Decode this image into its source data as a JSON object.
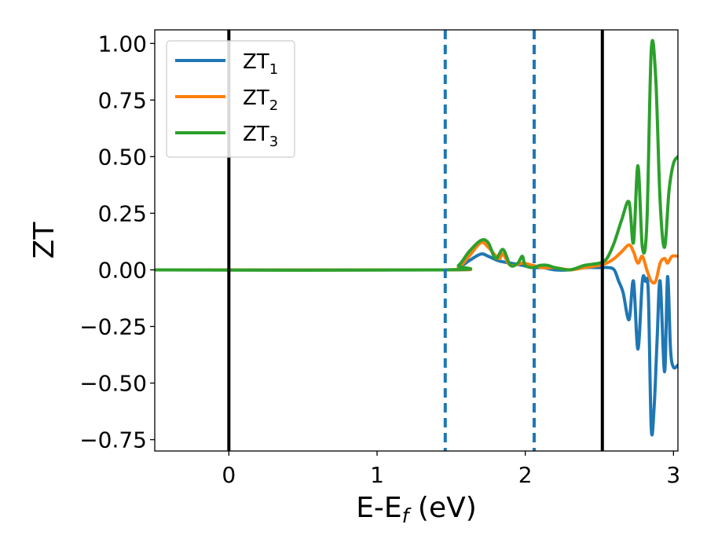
{
  "chart_data": {
    "type": "line",
    "xlabel": "E-E_f (eV)",
    "ylabel": "ZT",
    "xlim": [
      -0.5,
      3.03
    ],
    "ylim": [
      -0.8,
      1.06
    ],
    "xticks": [
      0,
      1,
      2,
      3
    ],
    "xtick_labels": [
      "0",
      "1",
      "2",
      "3"
    ],
    "yticks": [
      -0.75,
      -0.5,
      -0.25,
      0.0,
      0.25,
      0.5,
      0.75,
      1.0
    ],
    "ytick_labels": [
      "−0.75",
      "−0.50",
      "−0.25",
      "0.00",
      "0.25",
      "0.50",
      "0.75",
      "1.00"
    ],
    "grid": false,
    "legend_position": "top-left",
    "colors": {
      "ZT1": "#1f77b4",
      "ZT2": "#ff7f0e",
      "ZT3": "#2ca02c",
      "solid_vline": "#000000",
      "dashed_vline": "#1f77b4"
    },
    "vlines": [
      {
        "x": 0.0,
        "style": "solid"
      },
      {
        "x": 1.46,
        "style": "dashed"
      },
      {
        "x": 2.06,
        "style": "dashed"
      },
      {
        "x": 2.52,
        "style": "solid"
      }
    ],
    "series": [
      {
        "name": "ZT1",
        "label_main": "ZT",
        "label_sub": "1",
        "x": [
          -0.5,
          1.46,
          1.55,
          1.62,
          1.7,
          1.75,
          1.82,
          1.9,
          1.98,
          2.05,
          2.12,
          2.2,
          2.3,
          2.4,
          2.5,
          2.56,
          2.6,
          2.63,
          2.66,
          2.7,
          2.73,
          2.76,
          2.79,
          2.81,
          2.83,
          2.85,
          2.87,
          2.89,
          2.91,
          2.94,
          2.96,
          2.98,
          3.0,
          3.03
        ],
        "y": [
          0.0,
          0.0,
          0.01,
          0.04,
          0.07,
          0.06,
          0.04,
          0.03,
          0.02,
          0.01,
          0.01,
          0.0,
          0.0,
          0.01,
          0.01,
          0.01,
          0.0,
          -0.05,
          -0.1,
          -0.22,
          -0.05,
          -0.35,
          -0.05,
          -0.05,
          -0.1,
          -0.7,
          -0.6,
          -0.3,
          -0.05,
          -0.45,
          -0.03,
          -0.35,
          -0.43,
          -0.42
        ]
      },
      {
        "name": "ZT2",
        "label_main": "ZT",
        "label_sub": "2",
        "x": [
          -0.5,
          1.46,
          1.55,
          1.62,
          1.7,
          1.75,
          1.82,
          1.85,
          1.9,
          1.98,
          2.05,
          2.12,
          2.2,
          2.3,
          2.4,
          2.5,
          2.55,
          2.6,
          2.65,
          2.7,
          2.73,
          2.76,
          2.79,
          2.82,
          2.85,
          2.88,
          2.91,
          2.94,
          2.96,
          2.99,
          3.03
        ],
        "y": [
          0.0,
          0.0,
          0.01,
          0.06,
          0.12,
          0.1,
          0.05,
          0.07,
          0.02,
          0.03,
          0.02,
          0.01,
          0.01,
          0.0,
          0.01,
          0.02,
          0.03,
          0.05,
          0.08,
          0.11,
          0.08,
          0.03,
          0.06,
          0.0,
          -0.05,
          -0.05,
          0.03,
          0.05,
          0.03,
          0.06,
          0.06
        ]
      },
      {
        "name": "ZT3",
        "label_main": "ZT",
        "label_sub": "3",
        "x": [
          -0.5,
          1.46,
          1.55,
          1.62,
          1.7,
          1.75,
          1.8,
          1.85,
          1.9,
          1.95,
          1.98,
          2.0,
          2.05,
          2.1,
          2.15,
          2.2,
          2.3,
          2.4,
          2.5,
          2.55,
          2.6,
          2.65,
          2.7,
          2.73,
          2.76,
          2.79,
          2.82,
          2.85,
          2.88,
          2.91,
          2.94,
          2.97,
          3.0,
          3.03
        ],
        "y": [
          0.0,
          0.0,
          0.02,
          0.08,
          0.13,
          0.12,
          0.05,
          0.09,
          0.02,
          0.03,
          0.06,
          0.02,
          0.01,
          0.02,
          0.02,
          0.01,
          0.0,
          0.02,
          0.03,
          0.05,
          0.12,
          0.22,
          0.3,
          0.12,
          0.46,
          0.1,
          0.2,
          0.97,
          0.85,
          0.3,
          0.1,
          0.35,
          0.47,
          0.5
        ]
      }
    ]
  }
}
